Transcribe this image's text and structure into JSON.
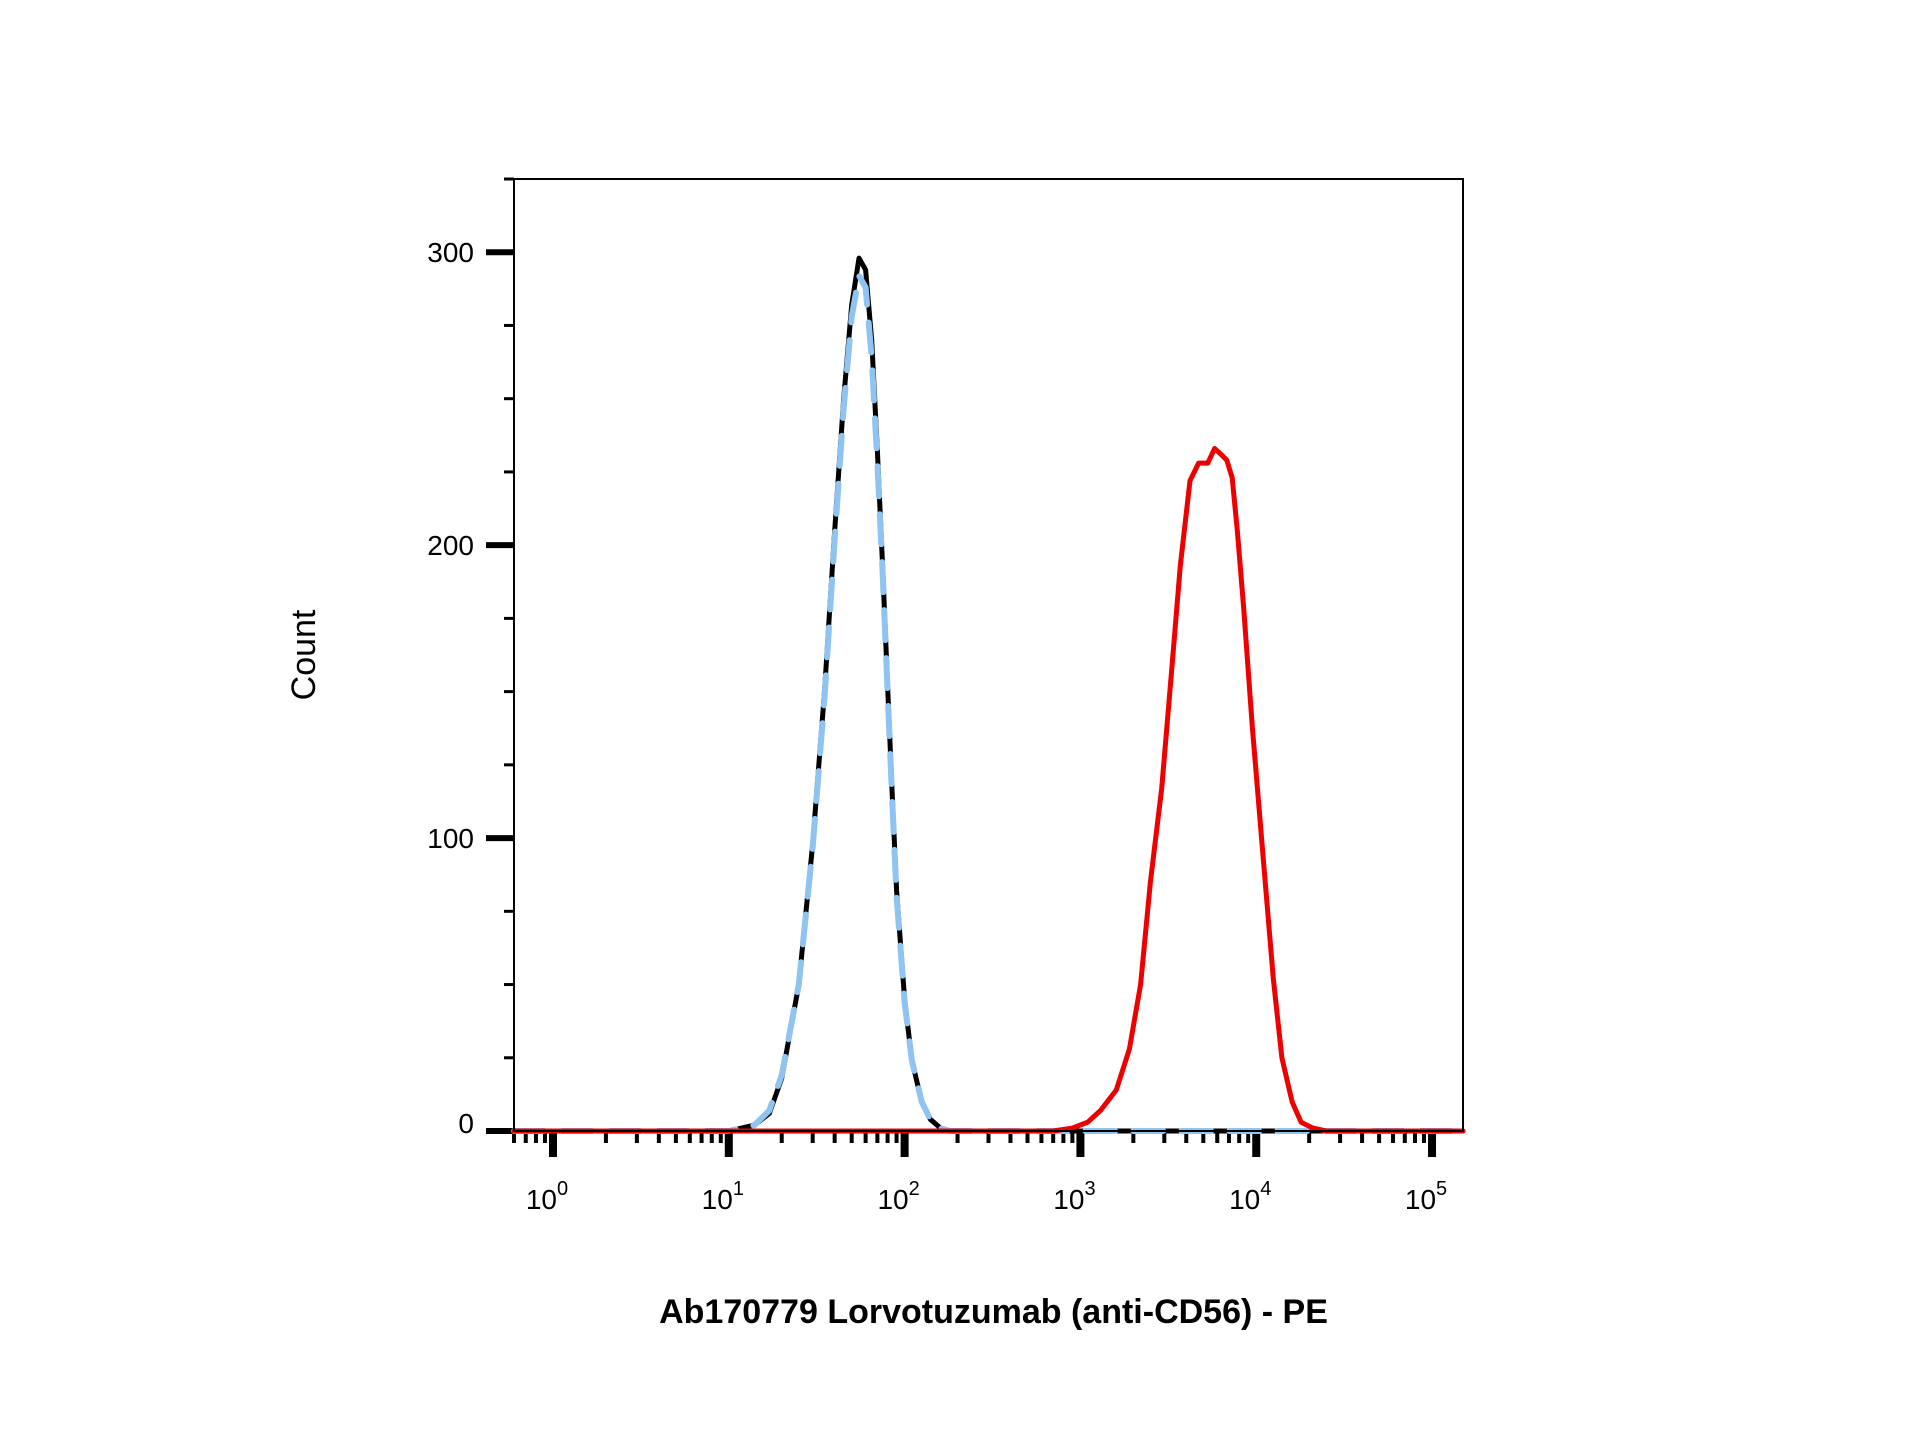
{
  "chart_data": {
    "type": "line",
    "title": "",
    "xlabel": "Ab170779 Lorvotuzumab (anti-CD56) - PE",
    "ylabel": "Count",
    "x_scale": "log",
    "xlim": [
      0.6,
      150000
    ],
    "ylim": [
      0,
      325
    ],
    "grid": false,
    "legend": "none",
    "x_ticks": [
      {
        "value": 1,
        "base": "10",
        "exp": "0"
      },
      {
        "value": 10,
        "base": "10",
        "exp": "1"
      },
      {
        "value": 100,
        "base": "10",
        "exp": "2"
      },
      {
        "value": 1000,
        "base": "10",
        "exp": "3"
      },
      {
        "value": 10000,
        "base": "10",
        "exp": "4"
      },
      {
        "value": 100000,
        "base": "10",
        "exp": "5"
      }
    ],
    "y_ticks": [
      0,
      100,
      200,
      300
    ],
    "y_tick_labels": [
      "0",
      "100",
      "200",
      "300"
    ],
    "series": [
      {
        "color": "#000000",
        "style": "solid",
        "x": [
          0.6,
          10,
          14,
          17,
          20,
          25,
          30,
          35,
          40,
          45,
          50,
          55,
          60,
          65,
          70,
          75,
          80,
          85,
          90,
          100,
          110,
          125,
          140,
          160,
          180,
          210,
          250,
          150000
        ],
        "y": [
          0,
          0,
          2,
          6,
          18,
          50,
          98,
          150,
          205,
          250,
          282,
          298,
          294,
          270,
          232,
          192,
          152,
          115,
          82,
          45,
          24,
          10,
          4,
          1,
          0,
          0,
          0,
          0
        ]
      },
      {
        "color": "#8ec3f2",
        "style": "dashed",
        "x": [
          0.6,
          10,
          14,
          17,
          20,
          25,
          30,
          35,
          40,
          45,
          50,
          55,
          60,
          65,
          70,
          75,
          80,
          85,
          90,
          100,
          110,
          125,
          140,
          160,
          180,
          210,
          250,
          150000
        ],
        "y": [
          0,
          0,
          2,
          7,
          19,
          50,
          97,
          148,
          202,
          247,
          278,
          292,
          288,
          264,
          228,
          190,
          150,
          113,
          80,
          44,
          24,
          10,
          4,
          1,
          0,
          0,
          0,
          0
        ]
      },
      {
        "color": "#ee0000",
        "style": "solid",
        "x": [
          0.6,
          700,
          900,
          1100,
          1300,
          1600,
          1900,
          2200,
          2500,
          2900,
          3300,
          3700,
          4200,
          4700,
          5300,
          5800,
          6300,
          6800,
          7300,
          7800,
          8500,
          9500,
          11000,
          12500,
          14000,
          16000,
          18000,
          21000,
          25000,
          150000
        ],
        "y": [
          0,
          0,
          1,
          3,
          7,
          14,
          28,
          50,
          85,
          117,
          157,
          193,
          222,
          228,
          228,
          233,
          231,
          229,
          223,
          205,
          178,
          138,
          92,
          52,
          25,
          10,
          3,
          1,
          0,
          0
        ]
      }
    ]
  }
}
